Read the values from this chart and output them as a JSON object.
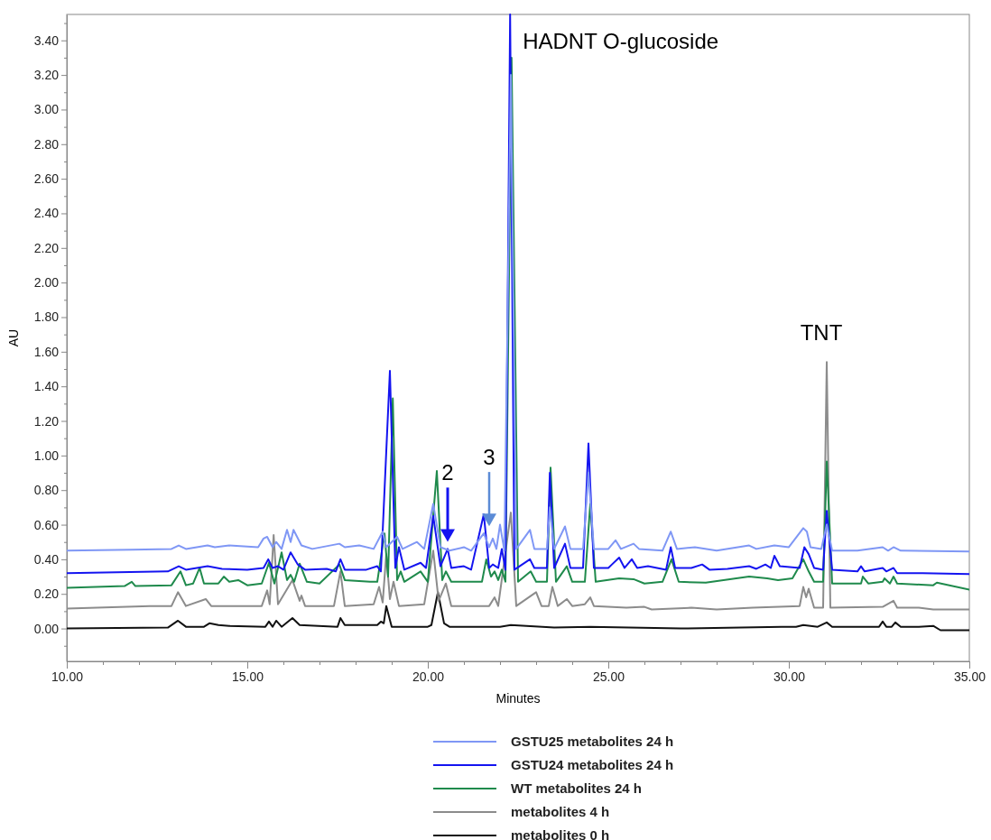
{
  "chart_data": {
    "type": "line",
    "xlabel": "Minutes",
    "ylabel": "AU",
    "xlim": [
      10,
      35
    ],
    "xticks": [
      {
        "value": 10,
        "label": "10.00"
      },
      {
        "value": 11,
        "label": null
      },
      {
        "value": 12,
        "label": null
      },
      {
        "value": 13,
        "label": null
      },
      {
        "value": 14,
        "label": null
      },
      {
        "value": 15,
        "label": "15.00"
      },
      {
        "value": 16,
        "label": null
      },
      {
        "value": 17,
        "label": null
      },
      {
        "value": 18,
        "label": null
      },
      {
        "value": 19,
        "label": null
      },
      {
        "value": 20,
        "label": "20.00"
      },
      {
        "value": 21,
        "label": null
      },
      {
        "value": 22,
        "label": null
      },
      {
        "value": 23,
        "label": null
      },
      {
        "value": 24,
        "label": null
      },
      {
        "value": 25,
        "label": "25.00"
      },
      {
        "value": 26,
        "label": null
      },
      {
        "value": 27,
        "label": null
      },
      {
        "value": 28,
        "label": null
      },
      {
        "value": 29,
        "label": null
      },
      {
        "value": 30,
        "label": "30.00"
      },
      {
        "value": 31,
        "label": null
      },
      {
        "value": 32,
        "label": null
      },
      {
        "value": 33,
        "label": null
      },
      {
        "value": 34,
        "label": null
      },
      {
        "value": 35,
        "label": "35.00"
      }
    ],
    "ylim": [
      -0.19,
      3.55
    ],
    "yticks": [
      {
        "value": -0.1,
        "label": null
      },
      {
        "value": 0,
        "label": "0.00"
      },
      {
        "value": 0.1,
        "label": null
      },
      {
        "value": 0.2,
        "label": "0.20"
      },
      {
        "value": 0.3,
        "label": null
      },
      {
        "value": 0.4,
        "label": "0.40"
      },
      {
        "value": 0.5,
        "label": null
      },
      {
        "value": 0.6,
        "label": "0.60"
      },
      {
        "value": 0.7,
        "label": null
      },
      {
        "value": 0.8,
        "label": "0.80"
      },
      {
        "value": 0.9,
        "label": null
      },
      {
        "value": 1.0,
        "label": "1.00"
      },
      {
        "value": 1.1,
        "label": null
      },
      {
        "value": 1.2,
        "label": "1.20"
      },
      {
        "value": 1.3,
        "label": null
      },
      {
        "value": 1.4,
        "label": "1.40"
      },
      {
        "value": 1.5,
        "label": null
      },
      {
        "value": 1.6,
        "label": "1.60"
      },
      {
        "value": 1.7,
        "label": null
      },
      {
        "value": 1.8,
        "label": "1.80"
      },
      {
        "value": 1.9,
        "label": null
      },
      {
        "value": 2.0,
        "label": "2.00"
      },
      {
        "value": 2.1,
        "label": null
      },
      {
        "value": 2.2,
        "label": "2.20"
      },
      {
        "value": 2.3,
        "label": null
      },
      {
        "value": 2.4,
        "label": "2.40"
      },
      {
        "value": 2.5,
        "label": null
      },
      {
        "value": 2.6,
        "label": "2.60"
      },
      {
        "value": 2.7,
        "label": null
      },
      {
        "value": 2.8,
        "label": "2.80"
      },
      {
        "value": 2.9,
        "label": null
      },
      {
        "value": 3.0,
        "label": "3.00"
      },
      {
        "value": 3.1,
        "label": null
      },
      {
        "value": 3.2,
        "label": "3.20"
      },
      {
        "value": 3.3,
        "label": null
      },
      {
        "value": 3.4,
        "label": "3.40"
      },
      {
        "value": 3.5,
        "label": null
      }
    ],
    "grid": false,
    "legend": "bottom",
    "marker": "none",
    "line_style": "solid",
    "annotations": [
      {
        "text": "HADNT O-glucoside",
        "x": 22.28,
        "y": 3.55
      },
      {
        "text": "TNT",
        "x": 31.05,
        "y": 1.54
      },
      {
        "text": "2",
        "x": 20.55,
        "y": 0.46
      },
      {
        "text": "3",
        "x": 21.7,
        "y": 0.55
      }
    ],
    "series": [
      {
        "name": "GSTU25 metabolites 24 h",
        "color": "#7f97f5",
        "x": [
          10,
          11.8,
          12.9,
          13.1,
          13.3,
          13.9,
          14.1,
          14.5,
          15.3,
          15.45,
          15.55,
          15.7,
          15.8,
          15.95,
          16.1,
          16.2,
          16.28,
          16.5,
          16.8,
          17.55,
          17.7,
          18.1,
          18.5,
          18.75,
          18.85,
          19.15,
          19.3,
          19.7,
          19.9,
          20.15,
          20.35,
          20.6,
          21.0,
          21.2,
          21.55,
          21.7,
          21.8,
          21.9,
          22.0,
          22.12,
          22.3,
          22.45,
          22.83,
          22.95,
          23.3,
          23.38,
          23.5,
          23.8,
          23.95,
          24.3,
          24.45,
          24.6,
          25.0,
          25.2,
          25.35,
          25.7,
          25.85,
          26.5,
          26.73,
          26.9,
          27.4,
          28.0,
          28.9,
          29.1,
          29.6,
          30.0,
          30.4,
          30.5,
          30.6,
          30.9,
          31.05,
          31.2,
          31.9,
          32.6,
          32.75,
          32.9,
          33.1,
          35
        ],
        "values": [
          0.45,
          0.455,
          0.46,
          0.48,
          0.46,
          0.48,
          0.47,
          0.48,
          0.47,
          0.52,
          0.53,
          0.47,
          0.5,
          0.46,
          0.57,
          0.5,
          0.57,
          0.48,
          0.46,
          0.49,
          0.47,
          0.48,
          0.46,
          0.56,
          0.47,
          0.53,
          0.46,
          0.5,
          0.46,
          0.72,
          0.47,
          0.45,
          0.47,
          0.45,
          0.55,
          0.47,
          0.52,
          0.46,
          0.6,
          0.45,
          3.2,
          0.46,
          0.57,
          0.46,
          0.46,
          0.7,
          0.46,
          0.59,
          0.46,
          0.46,
          0.9,
          0.46,
          0.46,
          0.51,
          0.46,
          0.49,
          0.46,
          0.45,
          0.56,
          0.46,
          0.47,
          0.45,
          0.48,
          0.46,
          0.48,
          0.47,
          0.58,
          0.56,
          0.47,
          0.46,
          0.6,
          0.45,
          0.45,
          0.47,
          0.45,
          0.47,
          0.45,
          0.445
        ]
      },
      {
        "name": "GSTU24 metabolites 24 h",
        "color": "#1414f0",
        "x": [
          10,
          12.8,
          13.1,
          13.3,
          13.9,
          14.3,
          15.0,
          15.45,
          15.58,
          15.7,
          15.85,
          16.0,
          16.2,
          16.4,
          16.6,
          17.2,
          17.45,
          17.58,
          17.7,
          18.3,
          18.6,
          18.7,
          18.95,
          19.1,
          19.2,
          19.35,
          19.8,
          19.95,
          20.15,
          20.35,
          20.55,
          20.65,
          21.0,
          21.2,
          21.55,
          21.7,
          21.8,
          21.95,
          22.05,
          22.15,
          22.28,
          22.4,
          22.83,
          22.95,
          23.3,
          23.38,
          23.5,
          23.8,
          23.95,
          24.3,
          24.45,
          24.6,
          25.0,
          25.1,
          25.3,
          25.45,
          25.65,
          25.8,
          26.1,
          26.6,
          26.73,
          26.85,
          27.3,
          27.6,
          27.8,
          28.3,
          28.9,
          29.1,
          29.35,
          29.5,
          29.6,
          29.75,
          30.3,
          30.43,
          30.55,
          30.7,
          30.95,
          31.05,
          31.2,
          31.9,
          32.0,
          32.1,
          32.6,
          32.7,
          32.8,
          32.9,
          33.0,
          33.7,
          35
        ],
        "values": [
          0.32,
          0.33,
          0.36,
          0.34,
          0.36,
          0.345,
          0.34,
          0.35,
          0.4,
          0.35,
          0.36,
          0.34,
          0.44,
          0.37,
          0.34,
          0.345,
          0.33,
          0.4,
          0.34,
          0.34,
          0.36,
          0.33,
          1.49,
          0.35,
          0.47,
          0.34,
          0.38,
          0.35,
          0.65,
          0.36,
          0.46,
          0.35,
          0.36,
          0.34,
          0.66,
          0.35,
          0.37,
          0.35,
          0.46,
          0.34,
          3.55,
          0.34,
          0.4,
          0.35,
          0.35,
          0.9,
          0.35,
          0.49,
          0.35,
          0.35,
          1.07,
          0.35,
          0.35,
          0.37,
          0.41,
          0.35,
          0.4,
          0.35,
          0.36,
          0.34,
          0.47,
          0.35,
          0.35,
          0.37,
          0.34,
          0.345,
          0.36,
          0.345,
          0.37,
          0.35,
          0.42,
          0.36,
          0.35,
          0.47,
          0.43,
          0.35,
          0.34,
          0.68,
          0.34,
          0.33,
          0.36,
          0.33,
          0.35,
          0.33,
          0.34,
          0.35,
          0.32,
          0.32,
          0.315
        ]
      },
      {
        "name": "WT metabolites 24 h",
        "color": "#1f8a4c",
        "x": [
          10,
          11.6,
          11.8,
          11.9,
          12.9,
          13.15,
          13.3,
          13.5,
          13.68,
          13.8,
          14.2,
          14.35,
          14.5,
          14.75,
          15.0,
          15.4,
          15.6,
          15.75,
          15.95,
          16.1,
          16.2,
          16.3,
          16.45,
          16.65,
          17.0,
          17.55,
          17.7,
          18.4,
          18.6,
          18.8,
          18.9,
          19.03,
          19.15,
          19.25,
          19.35,
          19.8,
          20.0,
          20.25,
          20.4,
          20.5,
          20.65,
          21.0,
          21.5,
          21.62,
          21.75,
          21.85,
          21.95,
          22.05,
          22.15,
          22.32,
          22.5,
          22.85,
          23.0,
          23.3,
          23.4,
          23.55,
          23.85,
          24.0,
          24.35,
          24.5,
          24.65,
          25.3,
          25.7,
          26.0,
          26.5,
          26.75,
          26.95,
          27.7,
          28.9,
          29.4,
          29.7,
          30.1,
          30.4,
          30.55,
          30.7,
          30.95,
          31.05,
          31.2,
          32.0,
          32.05,
          32.2,
          32.6,
          32.65,
          32.8,
          32.9,
          33.0,
          34.0,
          34.1,
          35
        ],
        "values": [
          0.235,
          0.245,
          0.27,
          0.245,
          0.25,
          0.33,
          0.25,
          0.26,
          0.35,
          0.26,
          0.26,
          0.3,
          0.27,
          0.28,
          0.25,
          0.26,
          0.38,
          0.26,
          0.44,
          0.28,
          0.31,
          0.27,
          0.375,
          0.27,
          0.26,
          0.37,
          0.28,
          0.27,
          0.27,
          0.55,
          0.3,
          1.33,
          0.28,
          0.33,
          0.27,
          0.33,
          0.27,
          0.91,
          0.28,
          0.33,
          0.27,
          0.27,
          0.27,
          0.4,
          0.3,
          0.33,
          0.28,
          0.34,
          0.27,
          3.3,
          0.27,
          0.33,
          0.27,
          0.27,
          0.93,
          0.27,
          0.36,
          0.27,
          0.27,
          0.72,
          0.27,
          0.29,
          0.285,
          0.26,
          0.27,
          0.4,
          0.27,
          0.265,
          0.3,
          0.29,
          0.28,
          0.29,
          0.4,
          0.33,
          0.27,
          0.27,
          0.965,
          0.26,
          0.26,
          0.3,
          0.26,
          0.27,
          0.29,
          0.26,
          0.3,
          0.26,
          0.25,
          0.265,
          0.225
        ]
      },
      {
        "name": "metabolites 4 h",
        "color": "#8c8c8c",
        "x": [
          10,
          12.3,
          12.9,
          13.08,
          13.3,
          13.85,
          14.0,
          15.4,
          15.55,
          15.62,
          15.73,
          15.85,
          16.25,
          16.45,
          16.5,
          16.6,
          17.4,
          17.58,
          17.7,
          18.5,
          18.65,
          18.75,
          18.85,
          18.95,
          19.05,
          19.2,
          19.9,
          20.15,
          20.3,
          20.5,
          20.65,
          21.7,
          21.85,
          21.95,
          22.3,
          22.45,
          23.0,
          23.15,
          23.35,
          23.45,
          23.6,
          23.85,
          24.0,
          24.35,
          24.5,
          24.6,
          25.5,
          26.0,
          26.2,
          27.3,
          28.0,
          29.0,
          30.3,
          30.4,
          30.48,
          30.55,
          30.7,
          30.95,
          31.05,
          31.15,
          32.6,
          32.9,
          33.0,
          33.6,
          34.0,
          35
        ],
        "values": [
          0.115,
          0.13,
          0.13,
          0.21,
          0.13,
          0.17,
          0.13,
          0.13,
          0.22,
          0.14,
          0.54,
          0.14,
          0.28,
          0.16,
          0.19,
          0.13,
          0.13,
          0.33,
          0.13,
          0.14,
          0.24,
          0.15,
          0.43,
          0.17,
          0.27,
          0.13,
          0.14,
          0.45,
          0.16,
          0.26,
          0.13,
          0.13,
          0.18,
          0.13,
          0.67,
          0.13,
          0.21,
          0.13,
          0.13,
          0.24,
          0.13,
          0.17,
          0.13,
          0.14,
          0.18,
          0.13,
          0.12,
          0.125,
          0.11,
          0.12,
          0.11,
          0.12,
          0.13,
          0.24,
          0.18,
          0.23,
          0.12,
          0.12,
          1.54,
          0.12,
          0.125,
          0.16,
          0.12,
          0.12,
          0.11,
          0.11
        ]
      },
      {
        "name": "metabolites 0 h",
        "color": "#111111",
        "x": [
          10,
          12.8,
          13.08,
          13.3,
          13.8,
          13.95,
          14.2,
          14.5,
          15.5,
          15.6,
          15.7,
          15.8,
          15.95,
          16.25,
          16.45,
          17.5,
          17.58,
          17.7,
          18.6,
          18.7,
          18.78,
          18.85,
          19.0,
          20.0,
          20.1,
          20.28,
          20.45,
          20.6,
          22.0,
          22.3,
          23.5,
          24.5,
          27.0,
          29.8,
          30.2,
          30.4,
          30.8,
          31.05,
          31.2,
          32.5,
          32.6,
          32.7,
          32.85,
          32.95,
          33.1,
          33.6,
          34.0,
          34.2,
          35
        ],
        "values": [
          0,
          0.005,
          0.045,
          0.01,
          0.01,
          0.03,
          0.02,
          0.015,
          0.01,
          0.04,
          0.01,
          0.045,
          0.01,
          0.06,
          0.02,
          0.01,
          0.06,
          0.02,
          0.02,
          0.04,
          0.03,
          0.13,
          0.01,
          0.01,
          0.02,
          0.21,
          0.03,
          0.01,
          0.01,
          0.02,
          0.005,
          0.01,
          0,
          0.01,
          0.01,
          0.02,
          0.01,
          0.035,
          0.01,
          0.01,
          0.04,
          0.01,
          0.01,
          0.035,
          0.01,
          0.01,
          0.015,
          -0.01,
          -0.01
        ]
      }
    ]
  }
}
